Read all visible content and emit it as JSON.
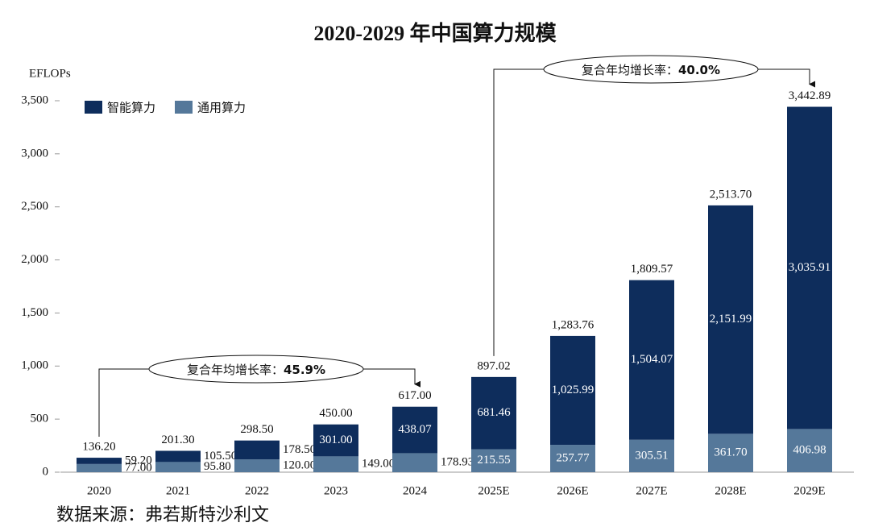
{
  "chart_data": {
    "type": "stacked_bar",
    "title": "2020-2029 年中国算力规模",
    "y_label": "EFLOPs",
    "categories": [
      "2020",
      "2021",
      "2022",
      "2023",
      "2024",
      "2025E",
      "2026E",
      "2027E",
      "2028E",
      "2029E"
    ],
    "series": [
      {
        "name": "通用算力",
        "color": "#55789a",
        "values": [
          77.0,
          95.8,
          120.0,
          149.0,
          178.93,
          215.55,
          257.77,
          305.51,
          361.7,
          406.98
        ],
        "value_labels": [
          "77.00",
          "95.80",
          "120.00",
          "149.00",
          "178.93",
          "215.55",
          "257.77",
          "305.51",
          "361.70",
          "406.98"
        ]
      },
      {
        "name": "智能算力",
        "color": "#0e2d5c",
        "values": [
          59.2,
          105.5,
          178.5,
          301.0,
          438.07,
          681.46,
          1025.99,
          1504.07,
          2151.99,
          3035.91
        ],
        "value_labels": [
          "59.20",
          "105.50",
          "178.50",
          "301.00",
          "438.07",
          "681.46",
          "1,025.99",
          "1,504.07",
          "2,151.99",
          "3,035.91"
        ]
      }
    ],
    "totals": [
      136.2,
      201.3,
      298.5,
      450.0,
      617.0,
      897.02,
      1283.76,
      1809.57,
      2513.7,
      3442.89
    ],
    "total_labels": [
      "136.20",
      "201.30",
      "298.50",
      "450.00",
      "617.00",
      "897.02",
      "1,283.76",
      "1,809.57",
      "2,513.70",
      "3,442.89"
    ],
    "ylim": [
      0,
      3500
    ],
    "yticks": [
      0,
      500,
      {
        "value": 1000,
        "label": "1,000"
      },
      {
        "value": 1500,
        "label": "1,500"
      },
      {
        "value": 2000,
        "label": "2,000"
      },
      {
        "value": 2500,
        "label": "2,500"
      },
      {
        "value": 3000,
        "label": "3,000"
      },
      {
        "value": 3500,
        "label": "3,500"
      }
    ],
    "annotations": [
      {
        "text": "复合年均增长率：",
        "emphasis": "45.9%"
      },
      {
        "text": "复合年均增长率：",
        "emphasis": "40.0%"
      }
    ],
    "source": "数据来源：弗若斯特沙利文"
  }
}
